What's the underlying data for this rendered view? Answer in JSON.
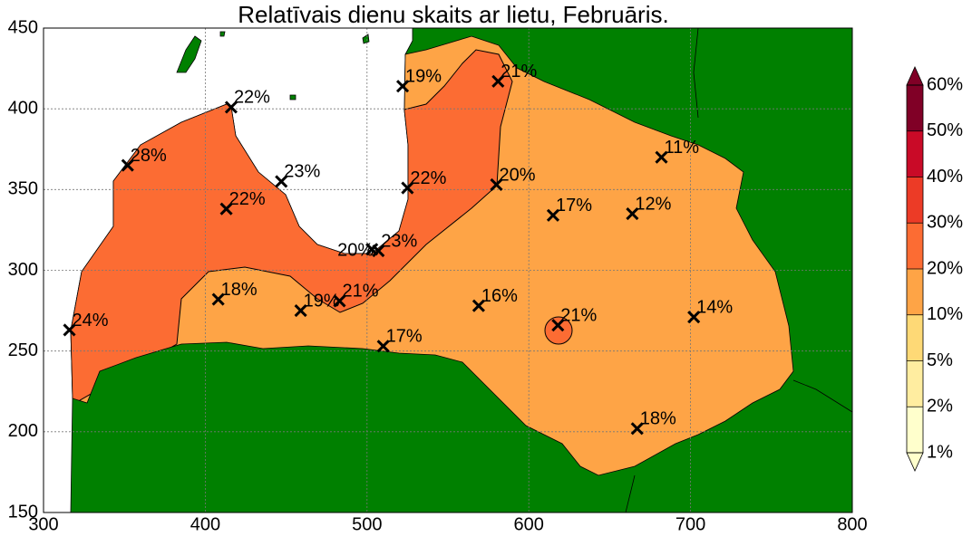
{
  "chart_data": {
    "type": "map",
    "title": "Relatīvais dienu skaits ar lietu, Februāris.",
    "xlim": [
      300,
      800
    ],
    "ylim": [
      150,
      450
    ],
    "xticks": [
      300,
      400,
      500,
      600,
      700,
      800
    ],
    "yticks": [
      150,
      200,
      250,
      300,
      350,
      400,
      450
    ],
    "grid": true,
    "marker_color": "#000000",
    "x": [
      316,
      352,
      416,
      413,
      447,
      408,
      459,
      483,
      503,
      507,
      510,
      522,
      525,
      581,
      580,
      569,
      615,
      618,
      664,
      682,
      702,
      667
    ],
    "y": [
      263,
      365,
      401,
      338,
      355,
      282,
      275,
      281,
      313,
      312,
      253,
      414,
      351,
      417,
      353,
      278,
      334,
      266,
      335,
      370,
      271,
      202
    ],
    "values": [
      24,
      28,
      22,
      22,
      23,
      18,
      19,
      21,
      20,
      23,
      17,
      19,
      22,
      21,
      20,
      16,
      17,
      21,
      12,
      11,
      14,
      18
    ],
    "value_labels": [
      "24%",
      "28%",
      "22%",
      "22%",
      "23%",
      "18%",
      "19%",
      "21%",
      "20%",
      "23%",
      "17%",
      "19%",
      "22%",
      "21%",
      "20%",
      "16%",
      "17%",
      "21%",
      "12%",
      "11%",
      "14%",
      "18%"
    ],
    "colorbar": {
      "ticks": [
        {
          "value": 1,
          "label": "1%"
        },
        {
          "value": 2,
          "label": "2%"
        },
        {
          "value": 5,
          "label": "5%"
        },
        {
          "value": 10,
          "label": "10%"
        },
        {
          "value": 20,
          "label": "20%"
        },
        {
          "value": 30,
          "label": "30%"
        },
        {
          "value": 40,
          "label": "40%"
        },
        {
          "value": 50,
          "label": "50%"
        },
        {
          "value": 60,
          "label": "60%"
        }
      ],
      "colors": [
        "#ffffcc",
        "#ffeda0",
        "#fed976",
        "#fea446",
        "#fc6c33",
        "#ec3b26",
        "#c90a27",
        "#800026"
      ]
    }
  }
}
